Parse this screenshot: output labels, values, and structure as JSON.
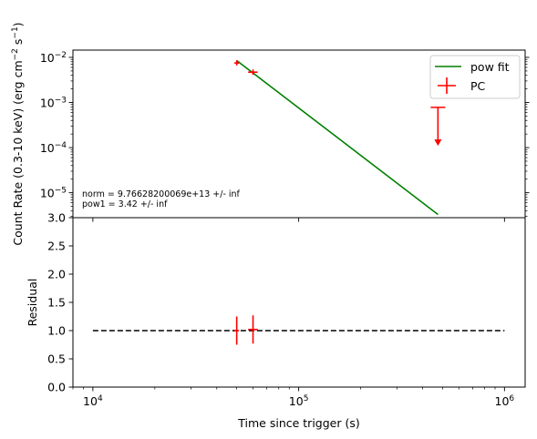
{
  "chart_data": [
    {
      "type": "scatter",
      "panel": "top",
      "ylabel_text": "Count Rate (0.3-10 keV) (erg cm",
      "ylabel_sup1": "−2",
      "ylabel_mid": " s",
      "ylabel_sup2": "−1",
      "ylabel_close": ")",
      "xscale": "log",
      "yscale": "log",
      "xlim": [
        8000,
        1260000
      ],
      "ylim": [
        2.8e-06,
        0.0145
      ],
      "y_ticks": [
        {
          "value": 0.01,
          "base": "10",
          "exp": "−2"
        },
        {
          "value": 0.001,
          "base": "10",
          "exp": "−3"
        },
        {
          "value": 0.0001,
          "base": "10",
          "exp": "−4"
        },
        {
          "value": 1e-05,
          "base": "10",
          "exp": "−5"
        }
      ],
      "legend": {
        "placement": "upper right",
        "fit_label": "pow fit",
        "data_label": "PC"
      },
      "fit": {
        "name": "pow fit",
        "color": "#008000",
        "x": [
          50000,
          475000
        ],
        "y": [
          0.0085,
          3.3e-06
        ]
      },
      "series": [
        {
          "name": "PC",
          "color": "#ff0000",
          "points": [
            {
              "x": 50000,
              "y": 0.0075,
              "xerr": [
                1300,
                1300
              ],
              "yerr": [
                0.0009,
                0.0011
              ]
            },
            {
              "x": 60000,
              "y": 0.0047,
              "xerr": [
                3200,
                3200
              ],
              "yerr": [
                0.0006,
                0.0007
              ]
            }
          ],
          "upper_limits": [
            {
              "x": 475000,
              "y": 0.00078
            }
          ]
        }
      ],
      "annotations": [
        "norm = 9.76628200069e+13 +/- inf",
        "pow1 = 3.42 +/- inf"
      ]
    },
    {
      "type": "scatter",
      "panel": "bottom",
      "xlabel": "Time since trigger (s)",
      "ylabel": "Residual",
      "xscale": "log",
      "xlim": [
        8000,
        1260000
      ],
      "ylim": [
        0,
        3.0
      ],
      "x_ticks": [
        {
          "value": 10000,
          "base": "10",
          "exp": "4"
        },
        {
          "value": 100000,
          "base": "10",
          "exp": "5"
        },
        {
          "value": 1000000,
          "base": "10",
          "exp": "6"
        }
      ],
      "y_ticks": [
        "0.0",
        "0.5",
        "1.0",
        "1.5",
        "2.0",
        "2.5",
        "3.0"
      ],
      "reference_line": {
        "y": 1.0,
        "x": [
          10000,
          1000000
        ],
        "style": "dashed"
      },
      "series": [
        {
          "name": "PC",
          "color": "#ff0000",
          "points": [
            {
              "x": 50000,
              "y": 1.0,
              "xerr": [
                1300,
                1300
              ],
              "yerr": [
                0.25,
                0.25
              ]
            },
            {
              "x": 60000,
              "y": 1.02,
              "xerr": [
                3200,
                3200
              ],
              "yerr": [
                0.25,
                0.25
              ]
            }
          ]
        }
      ]
    }
  ]
}
